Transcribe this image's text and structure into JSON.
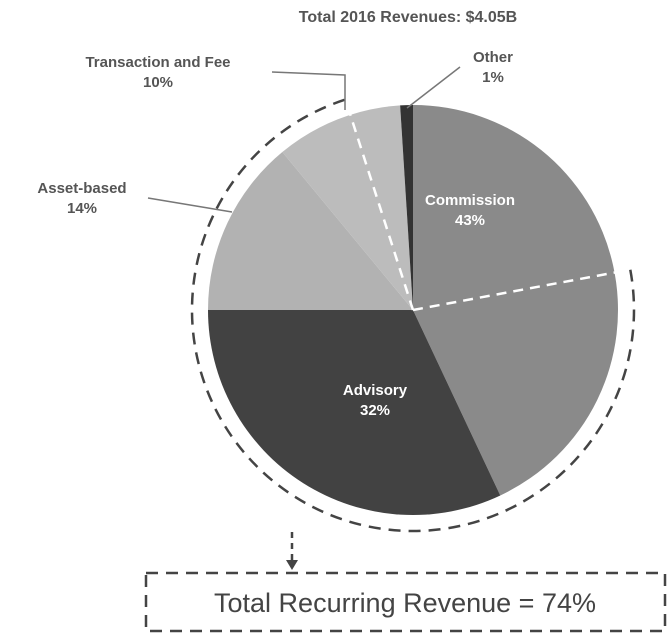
{
  "chart_data": {
    "type": "pie",
    "title": "Total 2016 Revenues: $4.05B",
    "categories": [
      "Commission",
      "Advisory",
      "Asset-based",
      "Transaction and Fee",
      "Other"
    ],
    "values": [
      43,
      32,
      14,
      10,
      1
    ],
    "value_labels": [
      "43%",
      "32%",
      "14%",
      "10%",
      "1%"
    ],
    "colors": [
      "#8a8a8a",
      "#424242",
      "#b2b2b2",
      "#bcbcbc",
      "#333333"
    ],
    "annotation": "Total Recurring Revenue = 74%"
  }
}
